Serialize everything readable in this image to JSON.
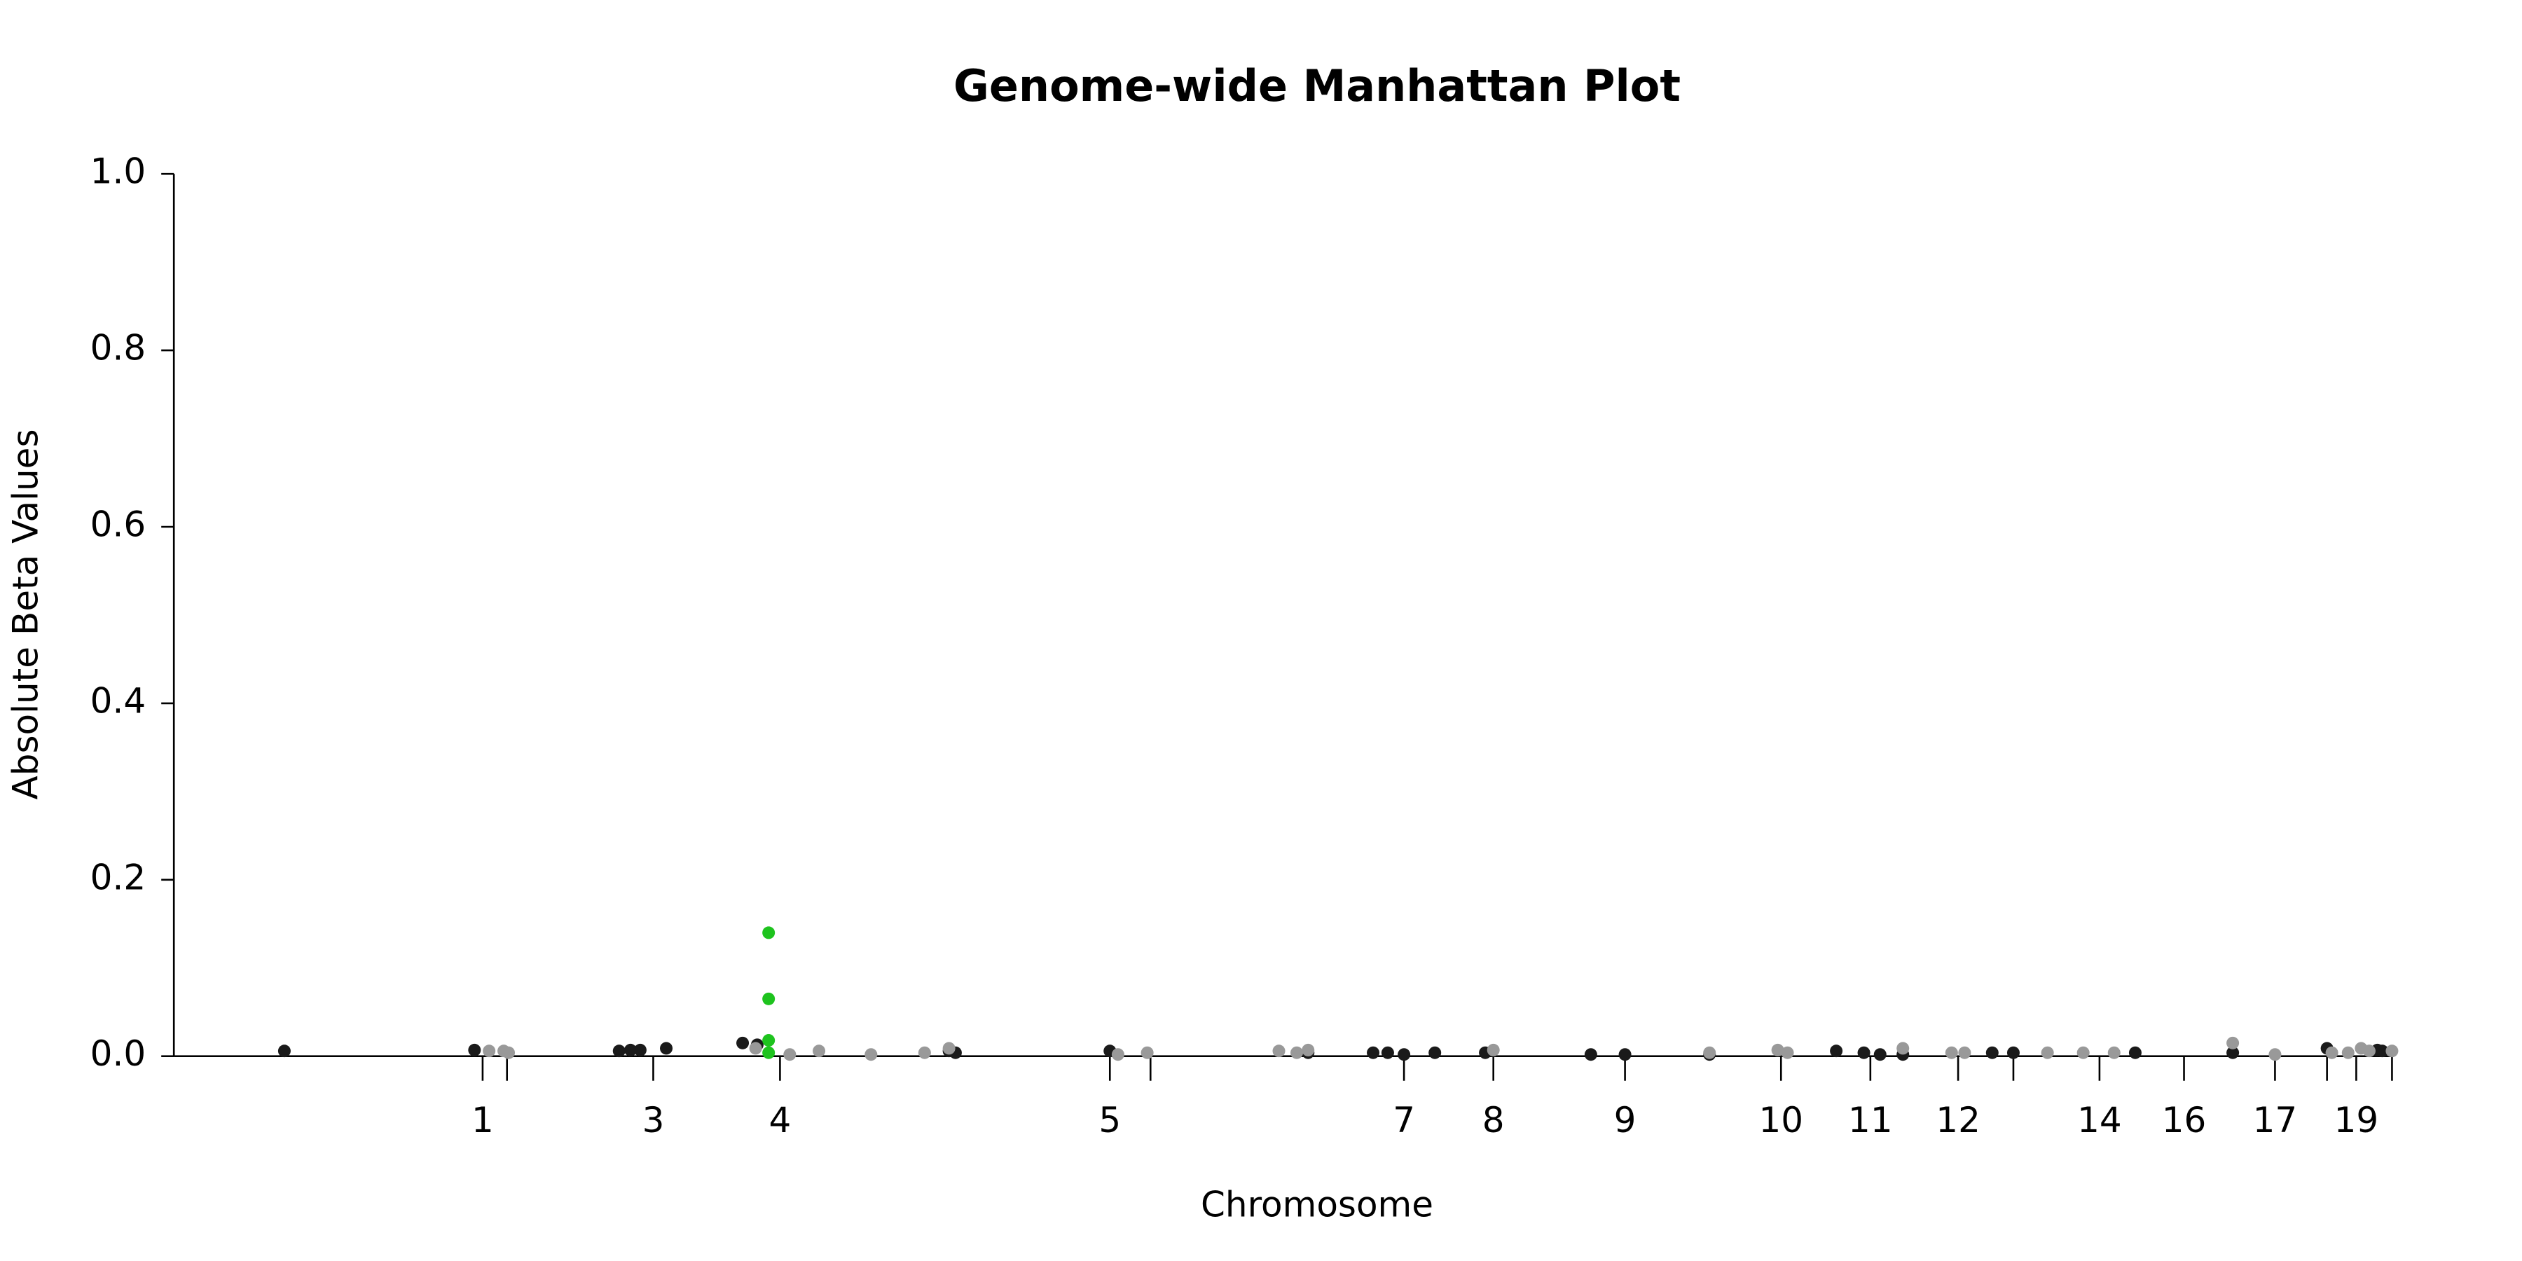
{
  "chart_data": {
    "type": "scatter",
    "title": "Genome-wide Manhattan Plot",
    "x_label": "Chromosome",
    "y_label": "Absolute Beta Values",
    "xlim": [
      107,
      1520
    ],
    "ylim": [
      0,
      1
    ],
    "xticks": [
      {
        "value": 297,
        "label": "1"
      },
      {
        "value": 312
      },
      {
        "value": 402,
        "label": "3"
      },
      {
        "value": 480,
        "label": "4"
      },
      {
        "value": 683,
        "label": "5"
      },
      {
        "value": 708
      },
      {
        "value": 864,
        "label": "7"
      },
      {
        "value": 919,
        "label": "8"
      },
      {
        "value": 1000,
        "label": "9"
      },
      {
        "value": 1096,
        "label": "10"
      },
      {
        "value": 1151,
        "label": "11"
      },
      {
        "value": 1205,
        "label": "12"
      },
      {
        "value": 1239
      },
      {
        "value": 1292,
        "label": "14"
      },
      {
        "value": 1344,
        "label": "16"
      },
      {
        "value": 1400,
        "label": "17"
      },
      {
        "value": 1432
      },
      {
        "value": 1450,
        "label": "19"
      },
      {
        "value": 1472
      }
    ],
    "yticks": [
      {
        "value": 0,
        "label": "0.0"
      },
      {
        "value": 0.2,
        "label": "0.2"
      },
      {
        "value": 0.4,
        "label": "0.4"
      },
      {
        "value": 0.6,
        "label": "0.6"
      },
      {
        "value": 0.8,
        "label": "0.8"
      },
      {
        "value": 1,
        "label": "1.0"
      }
    ],
    "series": [
      {
        "color": "#1a1a1a",
        "x": [
          175,
          292,
          381,
          388,
          394,
          410,
          457,
          466,
          584,
          588,
          683,
          805,
          845,
          854,
          864,
          883,
          914,
          979,
          1000,
          1052,
          1130,
          1147,
          1157,
          1171,
          1226,
          1239,
          1314,
          1374,
          1432,
          1463,
          1466
        ],
        "values": [
          0.006,
          0.007,
          0.006,
          0.007,
          0.007,
          0.009,
          0.015,
          0.013,
          0.006,
          0.004,
          0.006,
          0.004,
          0.004,
          0.004,
          0.002,
          0.004,
          0.004,
          0.002,
          0.002,
          0.002,
          0.006,
          0.004,
          0.002,
          0.002,
          0.004,
          0.004,
          0.004,
          0.004,
          0.009,
          0.007,
          0.006
        ]
      },
      {
        "color": "#999999",
        "x": [
          301,
          310,
          313,
          465,
          486,
          504,
          536,
          569,
          584,
          688,
          706,
          787,
          798,
          805,
          919,
          1052,
          1094,
          1100,
          1171,
          1201,
          1209,
          1260,
          1282,
          1301,
          1374,
          1400,
          1435,
          1445,
          1453,
          1458,
          1472
        ],
        "values": [
          0.006,
          0.006,
          0.004,
          0.009,
          0.002,
          0.006,
          0.002,
          0.004,
          0.009,
          0.002,
          0.004,
          0.006,
          0.004,
          0.007,
          0.007,
          0.004,
          0.007,
          0.004,
          0.009,
          0.004,
          0.004,
          0.004,
          0.004,
          0.004,
          0.015,
          0.002,
          0.004,
          0.004,
          0.009,
          0.006,
          0.006
        ]
      },
      {
        "color": "#1ec31e",
        "x": [
          473,
          473,
          473,
          473
        ],
        "values": [
          0.14,
          0.065,
          0.018,
          0.004
        ]
      }
    ]
  }
}
